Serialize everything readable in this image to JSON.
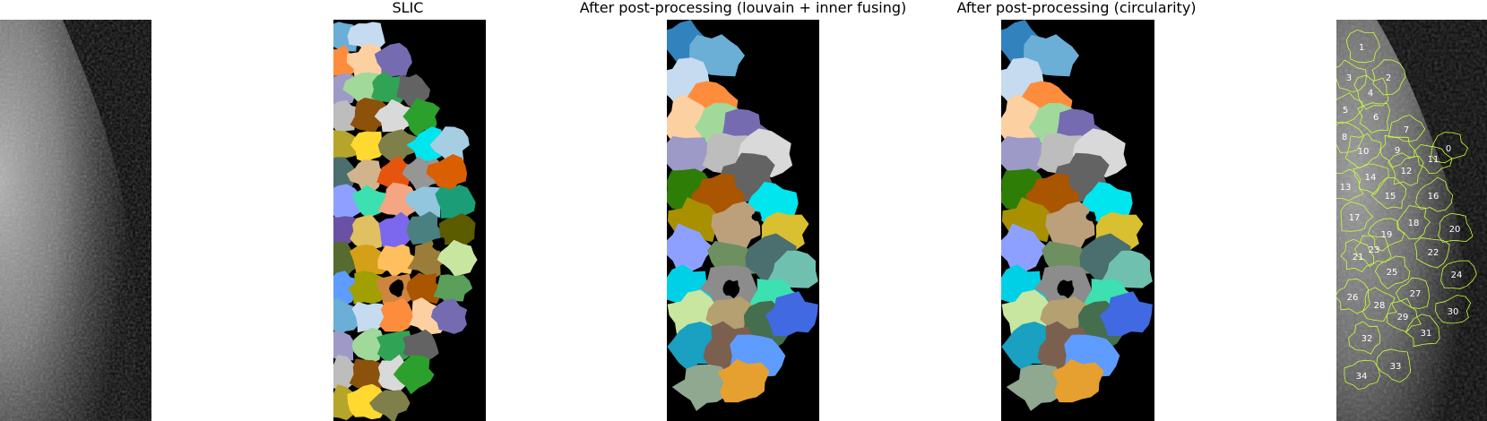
{
  "titles": {
    "panel2": "SLIC",
    "panel3": "After post-processing (louvain + inner fusing)",
    "panel4": "After post-processing (circularity)"
  },
  "labels_panel": {
    "outline_color": "#c8ff3c",
    "labels": [
      "0",
      "1",
      "2",
      "3",
      "4",
      "5",
      "6",
      "7",
      "8",
      "9",
      "10",
      "11",
      "12",
      "13",
      "14",
      "15",
      "16",
      "17",
      "18",
      "19",
      "20",
      "21",
      "22",
      "23",
      "24",
      "25",
      "26",
      "27",
      "28",
      "29",
      "30",
      "31",
      "32",
      "33",
      "34"
    ]
  },
  "colors": {
    "slic": [
      "#6baed6",
      "#c6dbef",
      "#fd8d3c",
      "#fdd0a2",
      "#756bb1",
      "#9e9ac8",
      "#a1d99b",
      "#31a354",
      "#636363",
      "#bdbdbd",
      "#8c510a",
      "#d9d9d9",
      "#2ca02c",
      "#b5a52a",
      "#ffd92f",
      "#7f7f4a",
      "#00e5ee",
      "#a6cee3",
      "#4b6e6e",
      "#d2b48c",
      "#e6550d",
      "#969696",
      "#d95f02",
      "#8ea0ff",
      "#3de0b0",
      "#f4a582",
      "#92c5de",
      "#1b9e77",
      "#6a51a3",
      "#e0c060",
      "#7b68ee",
      "#4a8080",
      "#5b5b00",
      "#556b2f",
      "#d4a017",
      "#ffbf5e",
      "#9b7d3a",
      "#c8e6a0",
      "#5e9cff",
      "#a0a000",
      "#cd853f",
      "#aa5500",
      "#5aa05a"
    ],
    "louvain": [
      "#3182bd",
      "#6baed6",
      "#c6dbef",
      "#fd8d3c",
      "#fdd0a2",
      "#a1d99b",
      "#756bb1",
      "#9e9ac8",
      "#bdbdbd",
      "#d9d9d9",
      "#636363",
      "#2e7d07",
      "#aa5500",
      "#00e5ee",
      "#a89000",
      "#bca07c",
      "#d8c030",
      "#8ea0ff",
      "#6e8f60",
      "#4b6e6e",
      "#70c0b0",
      "#00d0e6",
      "#8c8c8c",
      "#3de0b0",
      "#c8e6a0",
      "#b4a070",
      "#456e4e",
      "#4169e1",
      "#1aa0c0",
      "#7b6050",
      "#5e9cff",
      "#8fa88f",
      "#e6a030"
    ]
  }
}
